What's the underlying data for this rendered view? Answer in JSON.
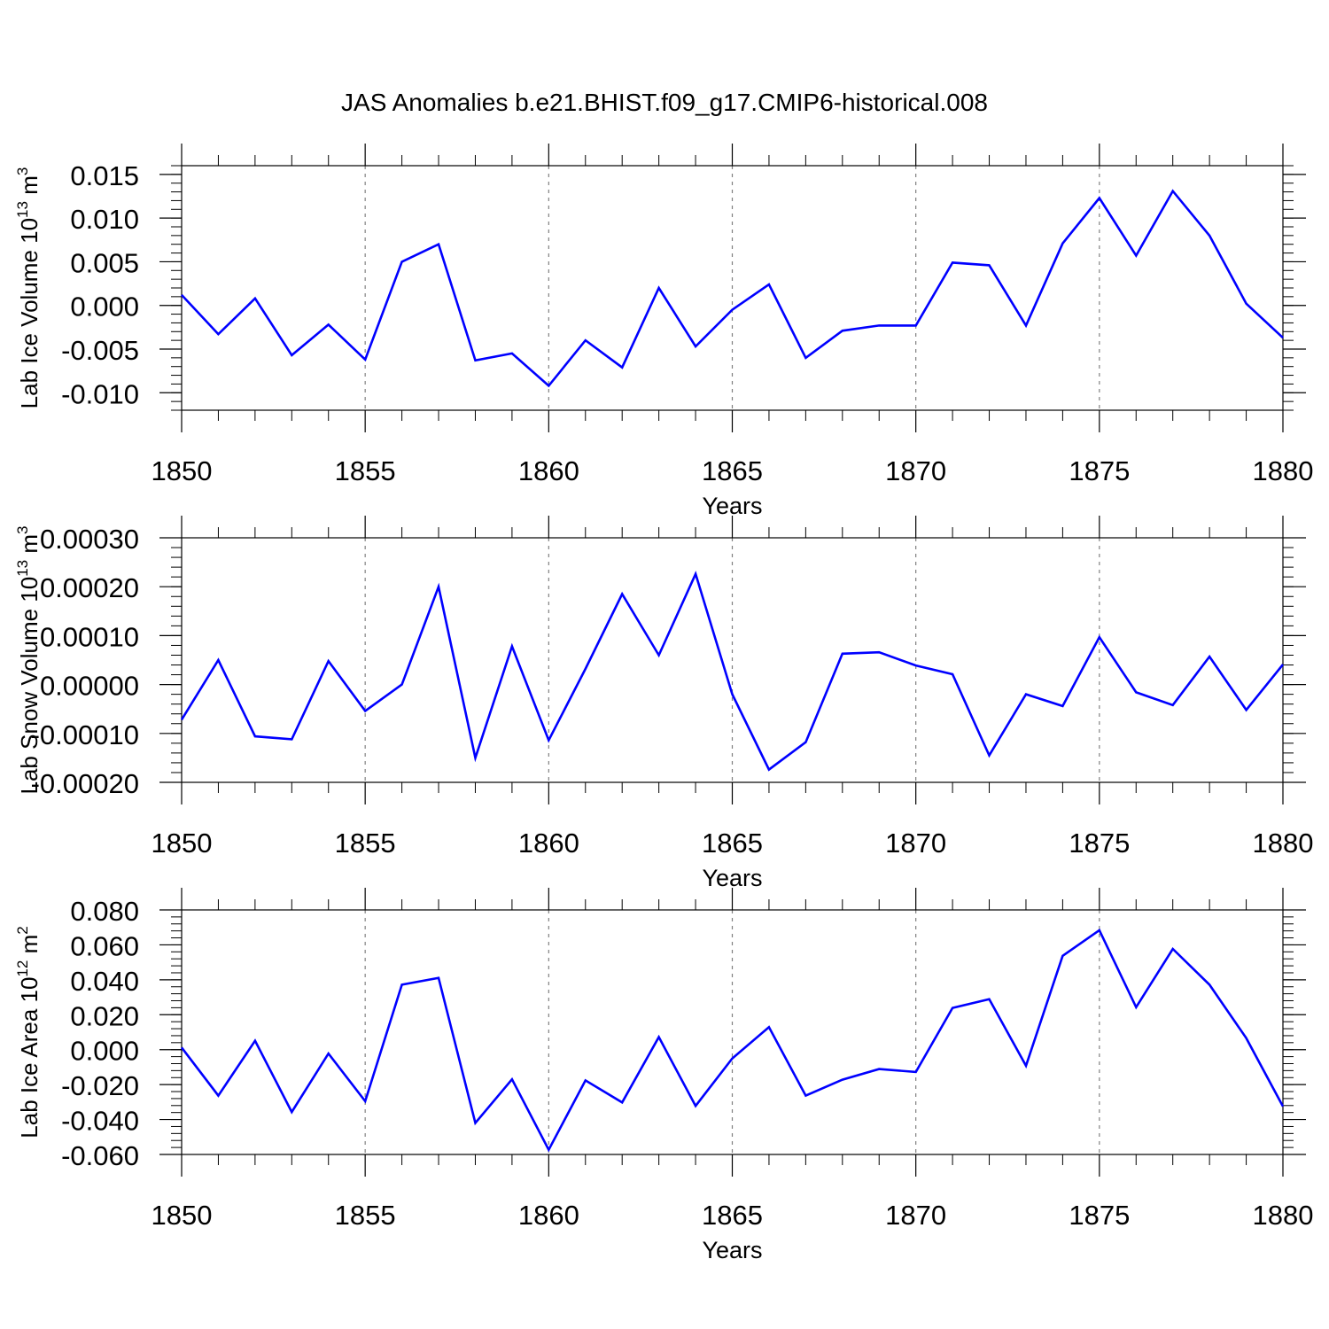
{
  "title": "JAS Anomalies b.e21.BHIST.f09_g17.CMIP6-historical.008",
  "colors": {
    "line": "#0000ff",
    "axis": "#000000",
    "grid": "#808080"
  },
  "chart_data": [
    {
      "type": "line",
      "ylabel": "Lab Ice Volume 10",
      "ylabel_sup": "13",
      "ylabel_unit": " m",
      "ylabel_unit_sup": "3",
      "xlabel": "Years",
      "xlim": [
        1850,
        1880
      ],
      "ylim": [
        -0.012,
        0.016
      ],
      "yticks": [
        -0.01,
        -0.005,
        0.0,
        0.005,
        0.01,
        0.015
      ],
      "ytick_labels": [
        "-0.010",
        "-0.005",
        "0.000",
        "0.005",
        "0.010",
        "0.015"
      ],
      "xticks": [
        1850,
        1855,
        1860,
        1865,
        1870,
        1875,
        1880
      ],
      "xtick_labels": [
        "1850",
        "1855",
        "1860",
        "1865",
        "1870",
        "1875",
        "1880"
      ],
      "x": [
        1850,
        1851,
        1852,
        1853,
        1854,
        1855,
        1856,
        1857,
        1858,
        1859,
        1860,
        1861,
        1862,
        1863,
        1864,
        1865,
        1866,
        1867,
        1868,
        1869,
        1870,
        1871,
        1872,
        1873,
        1874,
        1875,
        1876,
        1877,
        1878,
        1879,
        1880
      ],
      "values": [
        0.0012,
        -0.0033,
        0.0008,
        -0.0057,
        -0.0022,
        -0.0062,
        0.005,
        0.007,
        -0.0063,
        -0.0055,
        -0.0092,
        -0.004,
        -0.0071,
        0.002,
        -0.0047,
        -0.0005,
        0.0024,
        -0.006,
        -0.0029,
        -0.0023,
        -0.0023,
        0.0049,
        0.0046,
        -0.0023,
        0.0071,
        0.0123,
        0.0057,
        0.0131,
        0.008,
        0.0002,
        -0.0037
      ]
    },
    {
      "type": "line",
      "ylabel": "Lab Snow Volume 10",
      "ylabel_sup": "13",
      "ylabel_unit": " m",
      "ylabel_unit_sup": "3",
      "xlabel": "Years",
      "xlim": [
        1850,
        1880
      ],
      "ylim": [
        -0.0002,
        0.0003
      ],
      "yticks": [
        -0.0002,
        -0.0001,
        0.0,
        0.0001,
        0.0002,
        0.0003
      ],
      "ytick_labels": [
        "-0.00020",
        "-0.00010",
        "0.00000",
        "0.00010",
        "0.00020",
        "0.00030"
      ],
      "xticks": [
        1850,
        1855,
        1860,
        1865,
        1870,
        1875,
        1880
      ],
      "xtick_labels": [
        "1850",
        "1855",
        "1860",
        "1865",
        "1870",
        "1875",
        "1880"
      ],
      "x": [
        1850,
        1851,
        1852,
        1853,
        1854,
        1855,
        1856,
        1857,
        1858,
        1859,
        1860,
        1861,
        1862,
        1863,
        1864,
        1865,
        1866,
        1867,
        1868,
        1869,
        1870,
        1871,
        1872,
        1873,
        1874,
        1875,
        1876,
        1877,
        1878,
        1879,
        1880
      ],
      "values": [
        -7.2e-05,
        5e-05,
        -0.000106,
        -0.000112,
        4.8e-05,
        -5.4e-05,
        0.0,
        0.0002,
        -0.00015,
        7.8e-05,
        -0.000114,
        3.2e-05,
        0.000185,
        6e-05,
        0.000226,
        -2e-05,
        -0.000174,
        -0.000118,
        6.3e-05,
        6.6e-05,
        3.9e-05,
        2.1e-05,
        -0.000145,
        -2e-05,
        -4.4e-05,
        9.7e-05,
        -1.6e-05,
        -4.2e-05,
        5.7e-05,
        -5.2e-05,
        4.1e-05
      ]
    },
    {
      "type": "line",
      "ylabel": "Lab Ice Area 10",
      "ylabel_sup": "12",
      "ylabel_unit": " m",
      "ylabel_unit_sup": "2",
      "xlabel": "Years",
      "xlim": [
        1850,
        1880
      ],
      "ylim": [
        -0.06,
        0.08
      ],
      "yticks": [
        -0.06,
        -0.04,
        -0.02,
        0.0,
        0.02,
        0.04,
        0.06,
        0.08
      ],
      "ytick_labels": [
        "-0.060",
        "-0.040",
        "-0.020",
        "0.000",
        "0.020",
        "0.040",
        "0.060",
        "0.080"
      ],
      "xticks": [
        1850,
        1855,
        1860,
        1865,
        1870,
        1875,
        1880
      ],
      "xtick_labels": [
        "1850",
        "1855",
        "1860",
        "1865",
        "1870",
        "1875",
        "1880"
      ],
      "x": [
        1850,
        1851,
        1852,
        1853,
        1854,
        1855,
        1856,
        1857,
        1858,
        1859,
        1860,
        1861,
        1862,
        1863,
        1864,
        1865,
        1866,
        1867,
        1868,
        1869,
        1870,
        1871,
        1872,
        1873,
        1874,
        1875,
        1876,
        1877,
        1878,
        1879,
        1880
      ],
      "values": [
        0.0012,
        -0.0263,
        0.0051,
        -0.0357,
        -0.0022,
        -0.0295,
        0.0372,
        0.0411,
        -0.042,
        -0.017,
        -0.0573,
        -0.0176,
        -0.0302,
        0.0072,
        -0.0322,
        -0.005,
        0.0129,
        -0.0263,
        -0.0172,
        -0.0111,
        -0.0128,
        0.0239,
        0.0289,
        -0.0092,
        0.0537,
        0.0684,
        0.0243,
        0.0577,
        0.0372,
        0.0066,
        -0.0325
      ]
    }
  ]
}
